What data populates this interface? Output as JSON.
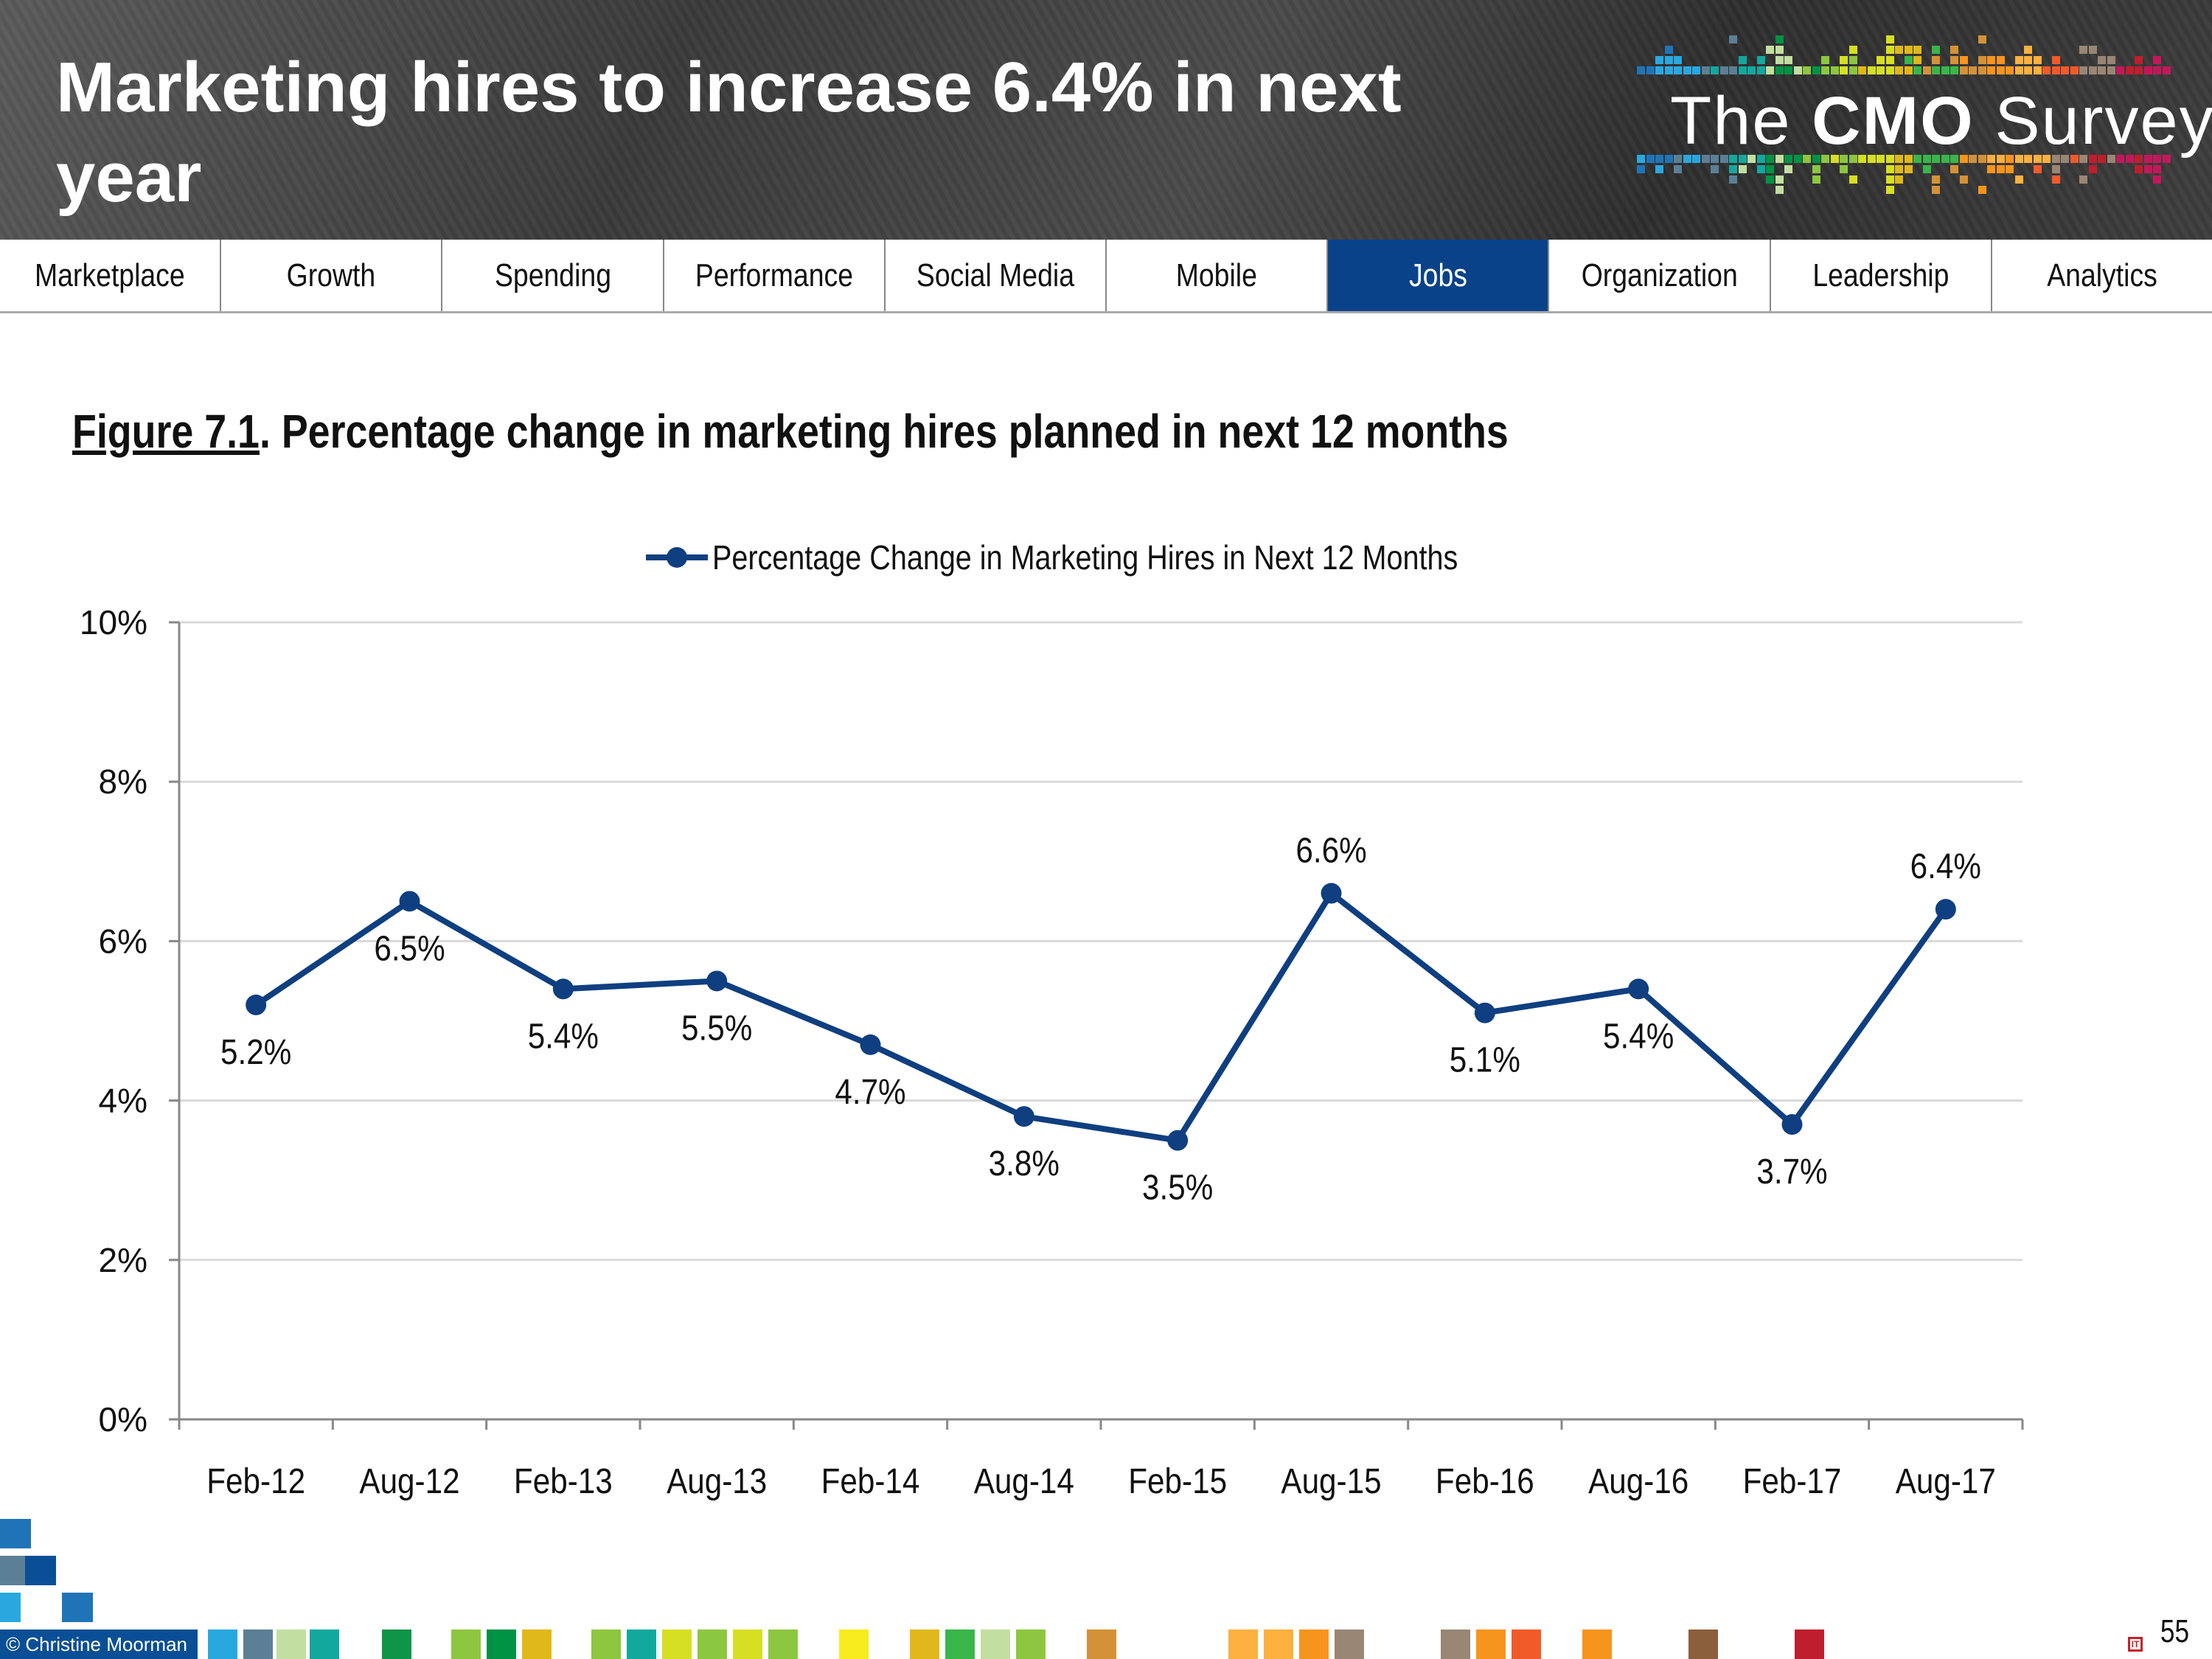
{
  "header": {
    "title": "Marketing hires to increase 6.4% in next year",
    "logo_text_pre": "The",
    "logo_text_bold": "CMO",
    "logo_text_post": "Survey"
  },
  "nav": {
    "items": [
      "Marketplace",
      "Growth",
      "Spending",
      "Performance",
      "Social Media",
      "Mobile",
      "Jobs",
      "Organization",
      "Leadership",
      "Analytics"
    ],
    "active": "Jobs",
    "active_color": "#0a4289"
  },
  "figure": {
    "number": "Figure 7.1",
    "title": ".  Percentage change in marketing hires planned in next 12 months"
  },
  "chart_data": {
    "type": "line",
    "categories": [
      "Feb-12",
      "Aug-12",
      "Feb-13",
      "Aug-13",
      "Feb-14",
      "Aug-14",
      "Feb-15",
      "Aug-15",
      "Feb-16",
      "Aug-16",
      "Feb-17",
      "Aug-17"
    ],
    "series": [
      {
        "name": "Percentage Change in Marketing Hires in Next 12 Months",
        "values": [
          5.2,
          6.5,
          5.4,
          5.5,
          4.7,
          3.8,
          3.5,
          6.6,
          5.1,
          5.4,
          3.7,
          6.4
        ],
        "data_labels": [
          "5.2%",
          "6.5%",
          "5.4%",
          "5.5%",
          "4.7%",
          "3.8%",
          "3.5%",
          "6.6%",
          "5.1%",
          "5.4%",
          "3.7%",
          "6.4%"
        ],
        "label_positions": [
          "below",
          "below",
          "below",
          "below",
          "below",
          "below",
          "below",
          "above",
          "below",
          "below",
          "below",
          "above"
        ],
        "color": "#0f3f80"
      }
    ],
    "ylim": [
      0,
      10
    ],
    "yticks": [
      "0%",
      "2%",
      "4%",
      "6%",
      "8%",
      "10%"
    ],
    "grid": true,
    "legend": "top-center",
    "title": "",
    "xlabel": "",
    "ylabel": ""
  },
  "footer": {
    "copyright": "© Christine Moorman",
    "page_number": "55",
    "colors": [
      "#29a8e0",
      "#5b7f95",
      "#c2dea0",
      "#13a89e",
      "#0f9448",
      "#8dc63f",
      "#009245",
      "#e0b81b",
      "#8dc63f",
      "#13a89e",
      "#d7df23",
      "#8dc63f",
      "#d7df23",
      "#8dc63f",
      "#f7ec1d",
      "#e0b81b",
      "#39b54a",
      "#c2dea0",
      "#8dc63f",
      "#d39237",
      "#fbb040",
      "#fbb040",
      "#f7941d",
      "#998675",
      "#998675",
      "#f7941d",
      "#f15a29",
      "#f7941d",
      "#8b5e3c",
      "#be1e2d"
    ]
  }
}
